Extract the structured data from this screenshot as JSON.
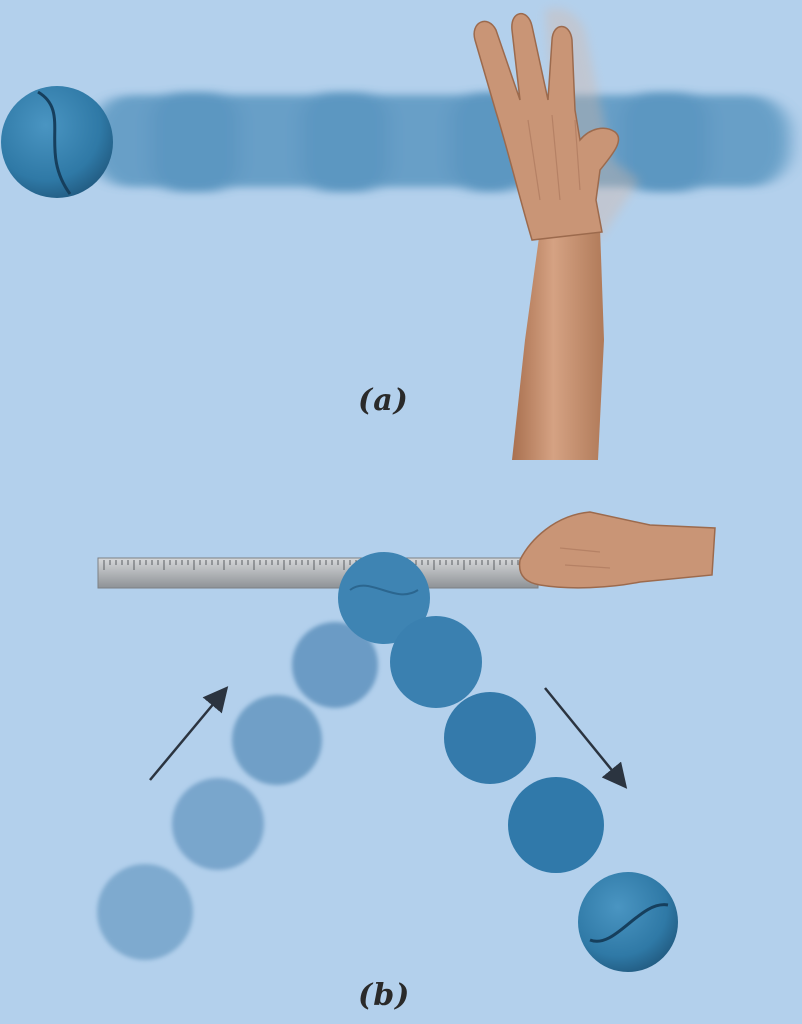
{
  "panels": [
    {
      "id": "a",
      "caption": "(a)"
    },
    {
      "id": "b",
      "caption": "(b)"
    }
  ],
  "colors": {
    "background": "#b3d0ec",
    "ball": "#2f79a6",
    "ball_seam": "#163f5d",
    "skin": "#c99576",
    "ruler": "#b7b9bb",
    "arrow": "#2b3440"
  },
  "icons": [
    "tennis-ball-icon",
    "hand-icon",
    "ruler-icon",
    "arrow-icon"
  ]
}
